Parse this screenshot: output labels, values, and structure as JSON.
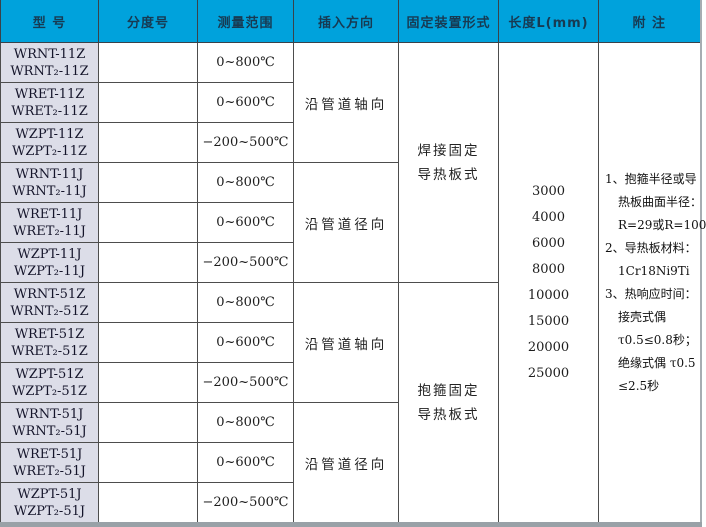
{
  "table": {
    "headers": {
      "model": "型  号",
      "graduation": "分度号",
      "range": "测量范围",
      "insert": "插入方向",
      "fixing": "固定装置形式",
      "length": "长度L(mm)",
      "notes": "附  注"
    },
    "rows": [
      {
        "model1": "WRNT-11Z",
        "model2": "WRNT₂-11Z",
        "graduation": "",
        "range": "0~800℃"
      },
      {
        "model1": "WRET-11Z",
        "model2": "WRET₂-11Z",
        "graduation": "",
        "range": "0~600℃"
      },
      {
        "model1": "WZPT-11Z",
        "model2": "WZPT₂-11Z",
        "graduation": "",
        "range": "−200~500℃"
      },
      {
        "model1": "WRNT-11J",
        "model2": "WRNT₂-11J",
        "graduation": "",
        "range": "0~800℃"
      },
      {
        "model1": "WRET-11J",
        "model2": "WRET₂-11J",
        "graduation": "",
        "range": "0~600℃"
      },
      {
        "model1": "WZPT-11J",
        "model2": "WZPT₂-11J",
        "graduation": "",
        "range": "−200~500℃"
      },
      {
        "model1": "WRNT-51Z",
        "model2": "WRNT₂-51Z",
        "graduation": "",
        "range": "0~800℃"
      },
      {
        "model1": "WRET-51Z",
        "model2": "WRET₂-51Z",
        "graduation": "",
        "range": "0~600℃"
      },
      {
        "model1": "WZPT-51Z",
        "model2": "WZPT₂-51Z",
        "graduation": "",
        "range": "−200~500℃"
      },
      {
        "model1": "WRNT-51J",
        "model2": "WRNT₂-51J",
        "graduation": "",
        "range": "0~800℃"
      },
      {
        "model1": "WRET-51J",
        "model2": "WRET₂-51J",
        "graduation": "",
        "range": "0~600℃"
      },
      {
        "model1": "WZPT-51J",
        "model2": "WZPT₂-51J",
        "graduation": "",
        "range": "−200~500℃"
      }
    ],
    "insert_directions": [
      "沿管道轴向",
      "沿管道径向",
      "沿管道轴向",
      "沿管道径向"
    ],
    "fixing_forms": [
      {
        "line1": "焊接固定",
        "line2": "导热板式"
      },
      {
        "line1": "抱箍固定",
        "line2": "导热板式"
      }
    ],
    "lengths": [
      "3000",
      "4000",
      "6000",
      "8000",
      "10000",
      "15000",
      "20000",
      "25000"
    ],
    "notes_lines": [
      "1、抱箍半径或导",
      "热板曲面半径：",
      "R=29或R=100",
      "2、导热板材料：",
      "1Cr18Ni9Ti",
      "3、热响应时间：",
      "接壳式偶",
      "τ0.5≤0.8秒；",
      "绝缘式偶 τ0.5",
      "≤2.5秒"
    ]
  },
  "colors": {
    "header_bg": "#00a2dc",
    "header_text": "#173a52",
    "model_cell_bg": "#dcdde8",
    "grid_line": "#4d4d4d",
    "outer_bottom_border": "#99a1a7"
  }
}
